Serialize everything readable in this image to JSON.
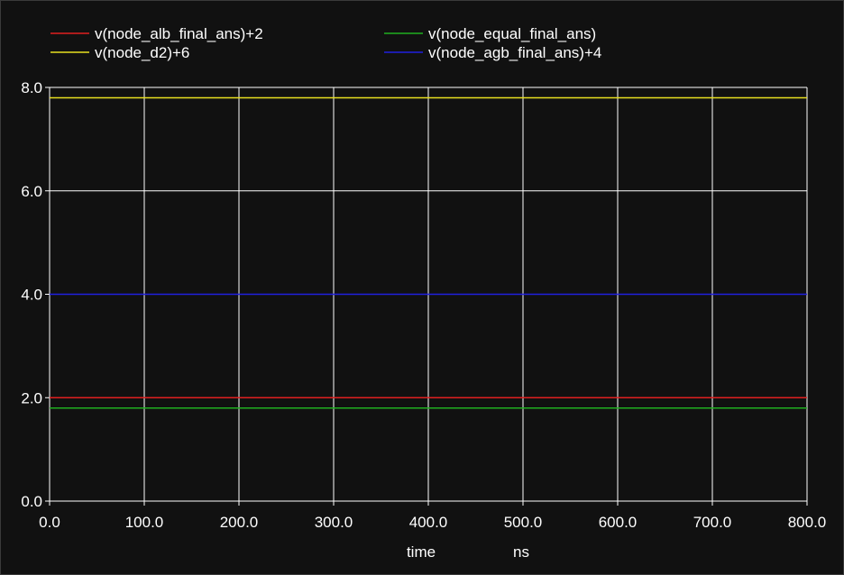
{
  "chart_data": {
    "type": "line",
    "xlabel": "time",
    "xunit": "ns",
    "ylabel": "",
    "xlim": [
      0,
      800
    ],
    "ylim": [
      0,
      8
    ],
    "x_ticks": [
      "0.0",
      "100.0",
      "200.0",
      "300.0",
      "400.0",
      "500.0",
      "600.0",
      "700.0",
      "800.0"
    ],
    "y_ticks": [
      "0.0",
      "2.0",
      "4.0",
      "6.0",
      "8.0"
    ],
    "grid": true,
    "legend_position": "top",
    "background": "#111111",
    "grid_color": "#ffffff",
    "x": [
      0,
      800
    ],
    "series": [
      {
        "name": "v(node_alb_final_ans)+2",
        "color": "#e02020",
        "values": [
          2.0,
          2.0
        ]
      },
      {
        "name": "v(node_equal_final_ans)",
        "color": "#20b020",
        "values": [
          1.8,
          1.8
        ]
      },
      {
        "name": "v(node_d2)+6",
        "color": "#e8e020",
        "values": [
          7.8,
          7.8
        ]
      },
      {
        "name": "v(node_agb_final_ans)+4",
        "color": "#2020e0",
        "values": [
          4.0,
          4.0
        ]
      }
    ]
  }
}
